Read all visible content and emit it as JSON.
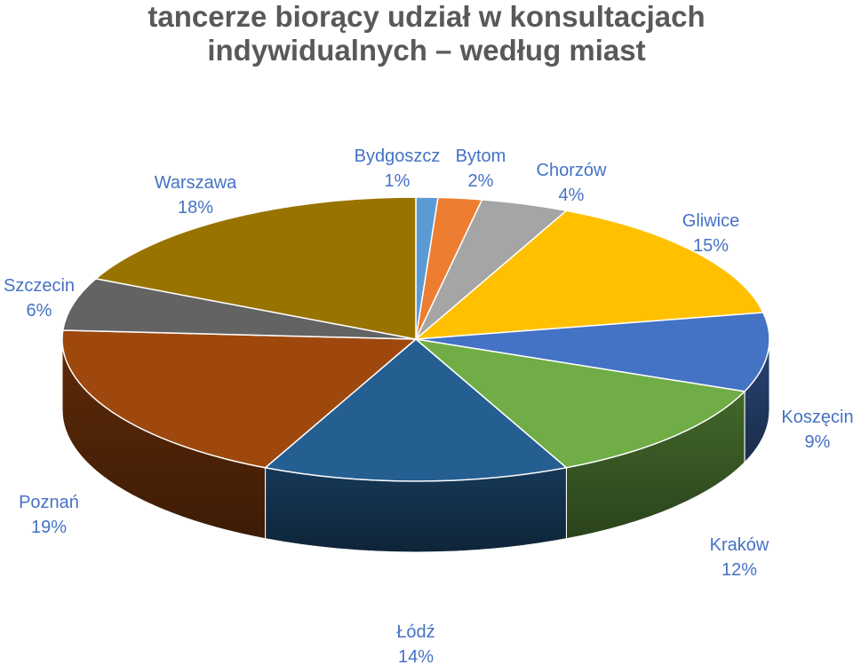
{
  "chart_data": {
    "type": "pie",
    "title_lines": [
      "tancerze biorący udział w konsultacjach",
      "indywidualnych – według miast"
    ],
    "slices": [
      {
        "name": "Bydgoszcz",
        "value": 1,
        "label": "1%",
        "color": "#5b9bd5"
      },
      {
        "name": "Bytom",
        "value": 2,
        "label": "2%",
        "color": "#ed7d31"
      },
      {
        "name": "Chorzów",
        "value": 4,
        "label": "4%",
        "color": "#a5a5a5"
      },
      {
        "name": "Gliwice",
        "value": 15,
        "label": "15%",
        "color": "#ffc000"
      },
      {
        "name": "Koszęcin",
        "value": 9,
        "label": "9%",
        "color": "#4472c4"
      },
      {
        "name": "Kraków",
        "value": 12,
        "label": "12%",
        "color": "#70ad47"
      },
      {
        "name": "Łódź",
        "value": 14,
        "label": "14%",
        "color": "#255e91"
      },
      {
        "name": "Poznań",
        "value": 19,
        "label": "19%",
        "color": "#9e480e"
      },
      {
        "name": "Szczecin",
        "value": 6,
        "label": "6%",
        "color": "#636363"
      },
      {
        "name": "Warszawa",
        "value": 18,
        "label": "18%",
        "color": "#997300"
      }
    ],
    "label_color": "#4472c4",
    "title_color": "#595959",
    "style": "3d-exploded-none"
  }
}
